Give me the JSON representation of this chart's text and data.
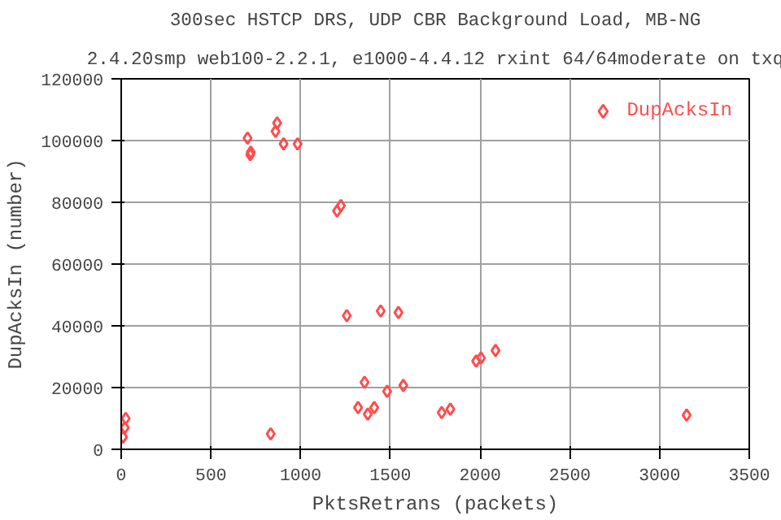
{
  "chart_data": {
    "type": "scatter",
    "title": "300sec HSTCP DRS, UDP CBR Background Load, MB-NG",
    "subtitle": "2.4.20smp web100-2.2.1, e1000-4.4.12 rxint 64/64moderate on txq",
    "xlabel": "PktsRetrans (packets)",
    "ylabel": "DupAcksIn (number)",
    "series": [
      {
        "name": "DupAcksIn",
        "color": "#ff4d4d",
        "x": [
          704,
          722,
          719,
          869,
          860,
          905,
          983,
          1224,
          1203,
          1257,
          1446,
          1545,
          2086,
          2005,
          1978,
          1356,
          1572,
          1482,
          1320,
          1410,
          1374,
          1786,
          1834,
          833,
          3151,
          10,
          20,
          25
        ],
        "values": [
          100800,
          96200,
          95400,
          105700,
          103000,
          98900,
          98900,
          78900,
          77200,
          43300,
          44800,
          44300,
          32000,
          29600,
          28600,
          21700,
          20700,
          18800,
          13500,
          13500,
          11400,
          11900,
          13000,
          5000,
          11100,
          4000,
          7000,
          10000
        ]
      }
    ],
    "xlim": [
      0,
      3500
    ],
    "ylim": [
      0,
      120000
    ],
    "xticks": [
      0,
      500,
      1000,
      1500,
      2000,
      2500,
      3000,
      3500
    ],
    "yticks": [
      0,
      20000,
      40000,
      60000,
      80000,
      100000,
      120000
    ],
    "grid": true,
    "legend": "top right",
    "marker": "diamond"
  }
}
